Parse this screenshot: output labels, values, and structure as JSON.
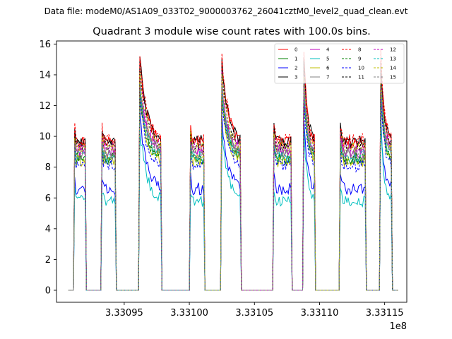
{
  "figure": {
    "suptitle": "Data file: modeM0/AS1A09_033T02_9000003762_26041cztM0_level2_quad_clean.evt",
    "title": "Quadrant 3 module wise count rates with 100.0s bins.",
    "offset_label": "1e8"
  },
  "chart_data": {
    "type": "line",
    "title": "Quadrant 3 module wise count rates with 100.0s bins.",
    "xlabel": "",
    "ylabel": "",
    "x_offset": 100000000,
    "xlim": [
      333089800,
      333116700
    ],
    "ylim": [
      -0.78,
      16.2
    ],
    "xticks": [
      333095000,
      333100000,
      333105000,
      333110000,
      333115000
    ],
    "xtick_labels": [
      "3.33095",
      "3.33100",
      "3.33105",
      "3.33110",
      "3.33115"
    ],
    "yticks": [
      0,
      2,
      4,
      6,
      8,
      10,
      12,
      14,
      16
    ],
    "ytick_labels": [
      "0",
      "2",
      "4",
      "6",
      "8",
      "10",
      "12",
      "14",
      "16"
    ],
    "legend_position": "top-right",
    "segments": [
      {
        "start": 333091200,
        "end": 333092000,
        "profile": "flat"
      },
      {
        "start": 333093300,
        "end": 333094300,
        "profile": "flat"
      },
      {
        "start": 333096200,
        "end": 333097800,
        "profile": "decay"
      },
      {
        "start": 333100100,
        "end": 333101100,
        "profile": "flat"
      },
      {
        "start": 333102500,
        "end": 333103900,
        "profile": "decay"
      },
      {
        "start": 333106500,
        "end": 333107800,
        "profile": "flat"
      },
      {
        "start": 333108800,
        "end": 333109600,
        "profile": "decay"
      },
      {
        "start": 333111600,
        "end": 333113500,
        "profile": "flat"
      },
      {
        "start": 333114700,
        "end": 333115500,
        "profile": "decay"
      }
    ],
    "series": [
      {
        "name": "0",
        "color": "#ff0000",
        "dashed": false,
        "level": 9.6,
        "peak": 15.2
      },
      {
        "name": "1",
        "color": "#008000",
        "dashed": false,
        "level": 8.6,
        "peak": 13.0
      },
      {
        "name": "2",
        "color": "#0000ff",
        "dashed": false,
        "level": 6.6,
        "peak": 11.2
      },
      {
        "name": "3",
        "color": "#000000",
        "dashed": false,
        "level": 9.7,
        "peak": 15.0
      },
      {
        "name": "4",
        "color": "#bf00bf",
        "dashed": false,
        "level": 9.0,
        "peak": 13.6
      },
      {
        "name": "5",
        "color": "#00bfbf",
        "dashed": false,
        "level": 5.8,
        "peak": 10.6
      },
      {
        "name": "6",
        "color": "#bfbf00",
        "dashed": false,
        "level": 8.4,
        "peak": 12.6
      },
      {
        "name": "7",
        "color": "#808080",
        "dashed": false,
        "level": 8.8,
        "peak": 13.0
      },
      {
        "name": "8",
        "color": "#ff0000",
        "dashed": true,
        "level": 9.8,
        "peak": 15.3
      },
      {
        "name": "9",
        "color": "#008000",
        "dashed": true,
        "level": 8.5,
        "peak": 12.8
      },
      {
        "name": "10",
        "color": "#0000ff",
        "dashed": true,
        "level": 8.1,
        "peak": 12.4
      },
      {
        "name": "11",
        "color": "#000000",
        "dashed": true,
        "level": 9.4,
        "peak": 14.5
      },
      {
        "name": "12",
        "color": "#bf00bf",
        "dashed": true,
        "level": 9.2,
        "peak": 14.0
      },
      {
        "name": "13",
        "color": "#00bfbf",
        "dashed": true,
        "level": 8.7,
        "peak": 13.2
      },
      {
        "name": "14",
        "color": "#bfbf00",
        "dashed": true,
        "level": 9.3,
        "peak": 14.1
      },
      {
        "name": "15",
        "color": "#808080",
        "dashed": true,
        "level": 8.9,
        "peak": 13.4
      }
    ]
  }
}
